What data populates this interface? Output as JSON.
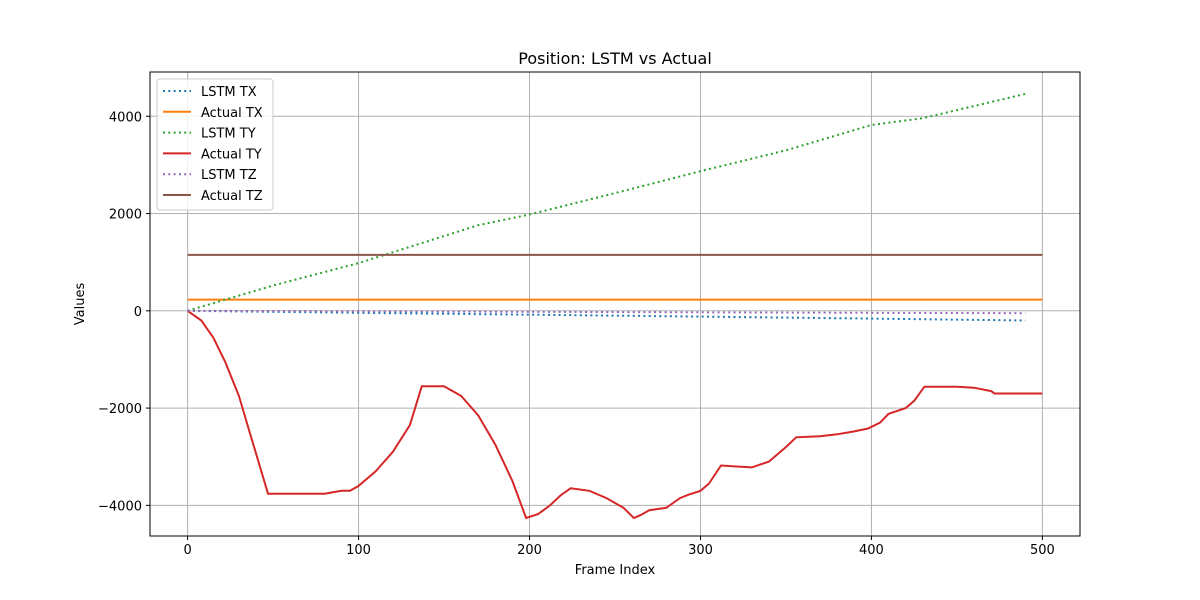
{
  "chart_data": {
    "type": "line",
    "title": "Position: LSTM vs Actual",
    "xlabel": "Frame Index",
    "ylabel": "Values",
    "xlim": [
      -22,
      522
    ],
    "ylim": [
      -4630,
      4910
    ],
    "xticks": [
      0,
      100,
      200,
      300,
      400,
      500
    ],
    "yticks": [
      -4000,
      -2000,
      0,
      2000,
      4000
    ],
    "xtick_labels": [
      "0",
      "100",
      "200",
      "300",
      "400",
      "500"
    ],
    "ytick_labels": [
      "−4000",
      "−2000",
      "0",
      "2000",
      "4000"
    ],
    "grid": true,
    "legend_position": "top-left",
    "series": [
      {
        "name": "LSTM TX",
        "color": "#1f77b4",
        "style": "dotted",
        "x": [
          0,
          100,
          200,
          300,
          400,
          490
        ],
        "y": [
          0,
          -40,
          -80,
          -120,
          -160,
          -200
        ]
      },
      {
        "name": "Actual TX",
        "color": "#ff7f0e",
        "style": "solid",
        "x": [
          0,
          500
        ],
        "y": [
          230,
          230
        ]
      },
      {
        "name": "LSTM TY",
        "color": "#2ca02c",
        "style": "dotted",
        "x": [
          0,
          50,
          100,
          170,
          200,
          250,
          300,
          350,
          400,
          430,
          490
        ],
        "y": [
          0,
          520,
          980,
          1760,
          1980,
          2420,
          2870,
          3300,
          3820,
          3960,
          4460
        ]
      },
      {
        "name": "Actual TY",
        "color": "#d62728",
        "style": "solid",
        "x": [
          0,
          8,
          15,
          22,
          30,
          38,
          47,
          60,
          80,
          90,
          95,
          100,
          110,
          120,
          130,
          137,
          145,
          150,
          160,
          170,
          180,
          190,
          198,
          205,
          212,
          218,
          224,
          235,
          245,
          255,
          261,
          265,
          270,
          280,
          288,
          293,
          300,
          305,
          312,
          320,
          330,
          340,
          350,
          356,
          370,
          380,
          390,
          398,
          405,
          410,
          420,
          425,
          431,
          450,
          460,
          470,
          472,
          480,
          490,
          500
        ],
        "y": [
          0,
          -200,
          -550,
          -1050,
          -1750,
          -2700,
          -3760,
          -3760,
          -3760,
          -3700,
          -3700,
          -3600,
          -3300,
          -2900,
          -2350,
          -1550,
          -1550,
          -1550,
          -1750,
          -2150,
          -2750,
          -3500,
          -4260,
          -4180,
          -4000,
          -3800,
          -3650,
          -3700,
          -3850,
          -4050,
          -4260,
          -4200,
          -4100,
          -4050,
          -3850,
          -3780,
          -3700,
          -3550,
          -3180,
          -3200,
          -3220,
          -3100,
          -2800,
          -2600,
          -2580,
          -2540,
          -2480,
          -2420,
          -2300,
          -2120,
          -2000,
          -1850,
          -1560,
          -1560,
          -1580,
          -1650,
          -1700,
          -1700,
          -1700,
          -1700
        ]
      },
      {
        "name": "LSTM TZ",
        "color": "#9467bd",
        "style": "dotted",
        "x": [
          0,
          100,
          200,
          300,
          400,
          490
        ],
        "y": [
          0,
          -10,
          -20,
          -30,
          -40,
          -50
        ]
      },
      {
        "name": "Actual TZ",
        "color": "#8c564b",
        "style": "solid",
        "x": [
          0,
          500
        ],
        "y": [
          1150,
          1150
        ]
      }
    ]
  }
}
